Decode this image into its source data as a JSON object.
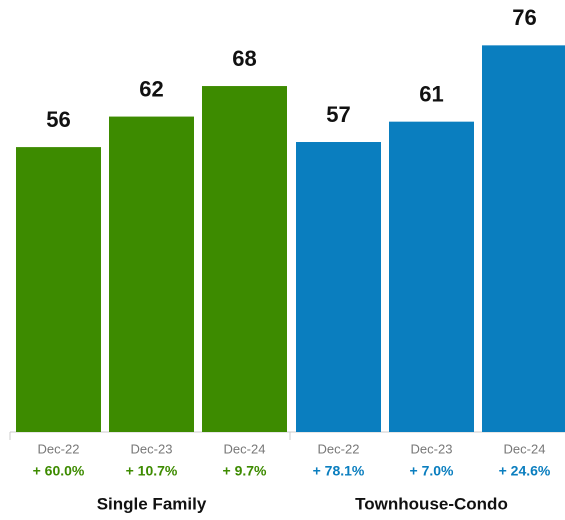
{
  "chart_data": {
    "type": "bar",
    "categories": [
      "Dec-22",
      "Dec-23",
      "Dec-24"
    ],
    "ylim": [
      0,
      80
    ],
    "series": [
      {
        "name": "Single Family",
        "color": "#3d8b00",
        "values": [
          56,
          62,
          68
        ],
        "changes": [
          "+ 60.0%",
          "+ 10.7%",
          "+ 9.7%"
        ]
      },
      {
        "name": "Townhouse-Condo",
        "color": "#0a7ebf",
        "values": [
          57,
          61,
          76
        ],
        "changes": [
          "+ 78.1%",
          "+ 7.0%",
          "+ 24.6%"
        ]
      }
    ]
  }
}
